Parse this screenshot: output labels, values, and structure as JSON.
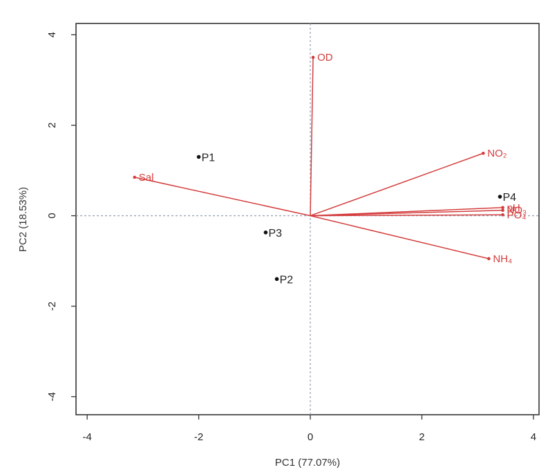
{
  "chart_data": {
    "type": "scatter",
    "subtype": "pca-biplot",
    "xlabel": "PC1 (77.07%)",
    "ylabel": "PC2 (18.53%)",
    "xlim": [
      -4.2,
      4.1
    ],
    "ylim": [
      -4.4,
      4.25
    ],
    "x_ticks": [
      -4,
      -2,
      0,
      2,
      4
    ],
    "y_ticks": [
      -4,
      -2,
      0,
      2,
      4
    ],
    "x_tick_labels": [
      "-4",
      "-2",
      "0",
      "2",
      "4"
    ],
    "y_tick_labels": [
      "-4",
      "-2",
      "0",
      "2",
      "4"
    ],
    "zero_reference_lines": true,
    "colors": {
      "loadings": "#d43c3c",
      "observations": "#111111",
      "reference": "#9aa4b8"
    },
    "observations": [
      {
        "label": "P1",
        "x": -2.0,
        "y": 1.3
      },
      {
        "label": "P2",
        "x": -0.6,
        "y": -1.4
      },
      {
        "label": "P3",
        "x": -0.8,
        "y": -0.37
      },
      {
        "label": "P4",
        "x": 3.4,
        "y": 0.42
      }
    ],
    "loadings": [
      {
        "label": "OD",
        "x": 0.05,
        "y": 3.5
      },
      {
        "label": "NO₂",
        "x": 3.1,
        "y": 1.38
      },
      {
        "label": "Sal",
        "x": -3.15,
        "y": 0.85
      },
      {
        "label": "pH",
        "x": 3.45,
        "y": 0.18
      },
      {
        "label": "NO₃",
        "x": 3.45,
        "y": 0.12
      },
      {
        "label": "PO₄",
        "x": 3.45,
        "y": 0.02
      },
      {
        "label": "NH₄",
        "x": 3.2,
        "y": -0.95
      }
    ]
  }
}
